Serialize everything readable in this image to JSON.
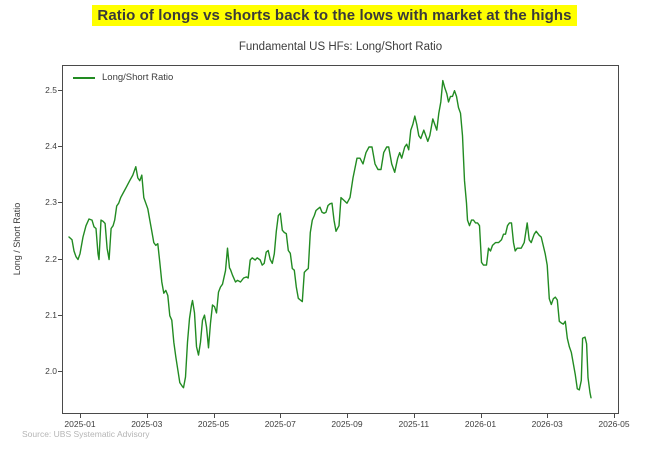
{
  "header": {
    "title": "Ratio of longs vs shorts back to the lows with market at the highs",
    "highlight_color": "#ffff00",
    "text_color": "#3a3a3a"
  },
  "source": "Source: UBS Systematic Advisory",
  "chart_data": {
    "type": "line",
    "title": "Fundamental US HFs: Long/Short Ratio",
    "xlabel": "",
    "ylabel": "Long / Short Ratio",
    "legend": [
      "Long/Short Ratio"
    ],
    "legend_position": "upper left",
    "grid": false,
    "line_color": "#228b22",
    "axis_color": "#4a4a4a",
    "x_unit": "months since 2025-01-01 (0 = 2025-01-01)",
    "xlim": [
      -0.54,
      16.09
    ],
    "ylim": [
      1.927,
      2.544
    ],
    "xticks": {
      "values": [
        0,
        2,
        4,
        6,
        8,
        10,
        12,
        14,
        16
      ],
      "labels": [
        "2025-01",
        "2025-03",
        "2025-05",
        "2025-07",
        "2025-09",
        "2025-11",
        "2026-01",
        "2026-03",
        "2026-05"
      ]
    },
    "yticks": {
      "values": [
        2.0,
        2.1,
        2.2,
        2.3,
        2.4,
        2.5
      ],
      "labels": [
        "2.0",
        "2.1",
        "2.2",
        "2.3",
        "2.4",
        "2.5"
      ]
    },
    "series": [
      {
        "name": "Long/Short Ratio",
        "points": [
          [
            -0.36,
            2.24
          ],
          [
            -0.27,
            2.235
          ],
          [
            -0.21,
            2.215
          ],
          [
            -0.15,
            2.205
          ],
          [
            -0.09,
            2.2
          ],
          [
            -0.03,
            2.21
          ],
          [
            0.06,
            2.24
          ],
          [
            0.15,
            2.26
          ],
          [
            0.24,
            2.272
          ],
          [
            0.33,
            2.27
          ],
          [
            0.39,
            2.258
          ],
          [
            0.45,
            2.255
          ],
          [
            0.51,
            2.21
          ],
          [
            0.54,
            2.2
          ],
          [
            0.6,
            2.27
          ],
          [
            0.66,
            2.268
          ],
          [
            0.72,
            2.264
          ],
          [
            0.78,
            2.22
          ],
          [
            0.84,
            2.2
          ],
          [
            0.9,
            2.255
          ],
          [
            0.96,
            2.26
          ],
          [
            1.01,
            2.27
          ],
          [
            1.07,
            2.295
          ],
          [
            1.13,
            2.3
          ],
          [
            1.19,
            2.31
          ],
          [
            1.28,
            2.32
          ],
          [
            1.37,
            2.33
          ],
          [
            1.46,
            2.34
          ],
          [
            1.55,
            2.35
          ],
          [
            1.64,
            2.365
          ],
          [
            1.7,
            2.345
          ],
          [
            1.76,
            2.34
          ],
          [
            1.82,
            2.35
          ],
          [
            1.88,
            2.31
          ],
          [
            1.94,
            2.3
          ],
          [
            2.0,
            2.29
          ],
          [
            2.06,
            2.27
          ],
          [
            2.12,
            2.25
          ],
          [
            2.18,
            2.23
          ],
          [
            2.24,
            2.225
          ],
          [
            2.3,
            2.228
          ],
          [
            2.36,
            2.195
          ],
          [
            2.42,
            2.16
          ],
          [
            2.48,
            2.14
          ],
          [
            2.54,
            2.145
          ],
          [
            2.6,
            2.136
          ],
          [
            2.66,
            2.1
          ],
          [
            2.72,
            2.092
          ],
          [
            2.78,
            2.053
          ],
          [
            2.84,
            2.027
          ],
          [
            2.9,
            2.004
          ],
          [
            2.96,
            1.981
          ],
          [
            3.04,
            1.974
          ],
          [
            3.07,
            1.972
          ],
          [
            3.13,
            1.991
          ],
          [
            3.19,
            2.053
          ],
          [
            3.25,
            2.095
          ],
          [
            3.31,
            2.119
          ],
          [
            3.34,
            2.127
          ],
          [
            3.4,
            2.105
          ],
          [
            3.46,
            2.045
          ],
          [
            3.52,
            2.03
          ],
          [
            3.58,
            2.053
          ],
          [
            3.64,
            2.092
          ],
          [
            3.7,
            2.101
          ],
          [
            3.76,
            2.08
          ],
          [
            3.82,
            2.043
          ],
          [
            3.88,
            2.087
          ],
          [
            3.94,
            2.119
          ],
          [
            4.0,
            2.116
          ],
          [
            4.06,
            2.105
          ],
          [
            4.12,
            2.142
          ],
          [
            4.18,
            2.151
          ],
          [
            4.24,
            2.156
          ],
          [
            4.33,
            2.18
          ],
          [
            4.39,
            2.22
          ],
          [
            4.45,
            2.185
          ],
          [
            4.48,
            2.182
          ],
          [
            4.54,
            2.172
          ],
          [
            4.63,
            2.16
          ],
          [
            4.69,
            2.163
          ],
          [
            4.78,
            2.16
          ],
          [
            4.87,
            2.167
          ],
          [
            4.96,
            2.169
          ],
          [
            5.01,
            2.167
          ],
          [
            5.07,
            2.199
          ],
          [
            5.13,
            2.203
          ],
          [
            5.22,
            2.199
          ],
          [
            5.28,
            2.203
          ],
          [
            5.37,
            2.199
          ],
          [
            5.43,
            2.19
          ],
          [
            5.49,
            2.193
          ],
          [
            5.55,
            2.213
          ],
          [
            5.61,
            2.216
          ],
          [
            5.67,
            2.2
          ],
          [
            5.73,
            2.193
          ],
          [
            5.79,
            2.21
          ],
          [
            5.85,
            2.25
          ],
          [
            5.91,
            2.278
          ],
          [
            5.97,
            2.282
          ],
          [
            6.03,
            2.252
          ],
          [
            6.09,
            2.248
          ],
          [
            6.15,
            2.246
          ],
          [
            6.21,
            2.216
          ],
          [
            6.27,
            2.211
          ],
          [
            6.33,
            2.184
          ],
          [
            6.39,
            2.181
          ],
          [
            6.45,
            2.151
          ],
          [
            6.51,
            2.131
          ],
          [
            6.57,
            2.128
          ],
          [
            6.63,
            2.125
          ],
          [
            6.69,
            2.177
          ],
          [
            6.75,
            2.181
          ],
          [
            6.81,
            2.184
          ],
          [
            6.87,
            2.248
          ],
          [
            6.93,
            2.27
          ],
          [
            6.99,
            2.278
          ],
          [
            7.04,
            2.287
          ],
          [
            7.1,
            2.29
          ],
          [
            7.16,
            2.293
          ],
          [
            7.22,
            2.284
          ],
          [
            7.28,
            2.282
          ],
          [
            7.34,
            2.284
          ],
          [
            7.4,
            2.296
          ],
          [
            7.46,
            2.299
          ],
          [
            7.52,
            2.3
          ],
          [
            7.58,
            2.27
          ],
          [
            7.64,
            2.25
          ],
          [
            7.73,
            2.26
          ],
          [
            7.79,
            2.31
          ],
          [
            7.88,
            2.305
          ],
          [
            7.97,
            2.3
          ],
          [
            8.06,
            2.31
          ],
          [
            8.15,
            2.345
          ],
          [
            8.27,
            2.38
          ],
          [
            8.36,
            2.38
          ],
          [
            8.45,
            2.37
          ],
          [
            8.54,
            2.39
          ],
          [
            8.63,
            2.4
          ],
          [
            8.72,
            2.4
          ],
          [
            8.81,
            2.37
          ],
          [
            8.9,
            2.36
          ],
          [
            8.99,
            2.36
          ],
          [
            9.07,
            2.39
          ],
          [
            9.16,
            2.4
          ],
          [
            9.22,
            2.4
          ],
          [
            9.31,
            2.37
          ],
          [
            9.4,
            2.355
          ],
          [
            9.49,
            2.38
          ],
          [
            9.55,
            2.39
          ],
          [
            9.61,
            2.38
          ],
          [
            9.7,
            2.4
          ],
          [
            9.76,
            2.405
          ],
          [
            9.82,
            2.395
          ],
          [
            9.88,
            2.43
          ],
          [
            9.94,
            2.44
          ],
          [
            10.0,
            2.455
          ],
          [
            10.06,
            2.44
          ],
          [
            10.12,
            2.42
          ],
          [
            10.18,
            2.415
          ],
          [
            10.27,
            2.43
          ],
          [
            10.33,
            2.42
          ],
          [
            10.39,
            2.41
          ],
          [
            10.45,
            2.42
          ],
          [
            10.54,
            2.45
          ],
          [
            10.6,
            2.44
          ],
          [
            10.66,
            2.43
          ],
          [
            10.72,
            2.46
          ],
          [
            10.78,
            2.48
          ],
          [
            10.84,
            2.518
          ],
          [
            10.9,
            2.505
          ],
          [
            10.96,
            2.495
          ],
          [
            11.01,
            2.48
          ],
          [
            11.07,
            2.49
          ],
          [
            11.13,
            2.49
          ],
          [
            11.19,
            2.5
          ],
          [
            11.25,
            2.49
          ],
          [
            11.31,
            2.47
          ],
          [
            11.37,
            2.46
          ],
          [
            11.43,
            2.42
          ],
          [
            11.49,
            2.34
          ],
          [
            11.55,
            2.3
          ],
          [
            11.58,
            2.27
          ],
          [
            11.64,
            2.26
          ],
          [
            11.7,
            2.27
          ],
          [
            11.76,
            2.27
          ],
          [
            11.82,
            2.265
          ],
          [
            11.88,
            2.265
          ],
          [
            11.94,
            2.26
          ],
          [
            12.0,
            2.195
          ],
          [
            12.06,
            2.19
          ],
          [
            12.15,
            2.19
          ],
          [
            12.21,
            2.22
          ],
          [
            12.27,
            2.215
          ],
          [
            12.33,
            2.225
          ],
          [
            12.42,
            2.23
          ],
          [
            12.51,
            2.23
          ],
          [
            12.6,
            2.235
          ],
          [
            12.66,
            2.245
          ],
          [
            12.72,
            2.245
          ],
          [
            12.78,
            2.26
          ],
          [
            12.84,
            2.265
          ],
          [
            12.9,
            2.265
          ],
          [
            12.96,
            2.23
          ],
          [
            13.01,
            2.215
          ],
          [
            13.07,
            2.22
          ],
          [
            13.19,
            2.22
          ],
          [
            13.28,
            2.23
          ],
          [
            13.37,
            2.265
          ],
          [
            13.43,
            2.235
          ],
          [
            13.49,
            2.23
          ],
          [
            13.58,
            2.245
          ],
          [
            13.64,
            2.25
          ],
          [
            13.73,
            2.243
          ],
          [
            13.79,
            2.24
          ],
          [
            13.85,
            2.225
          ],
          [
            13.91,
            2.21
          ],
          [
            13.97,
            2.19
          ],
          [
            14.03,
            2.13
          ],
          [
            14.09,
            2.12
          ],
          [
            14.15,
            2.13
          ],
          [
            14.21,
            2.133
          ],
          [
            14.27,
            2.128
          ],
          [
            14.33,
            2.09
          ],
          [
            14.39,
            2.087
          ],
          [
            14.45,
            2.085
          ],
          [
            14.51,
            2.09
          ],
          [
            14.57,
            2.06
          ],
          [
            14.63,
            2.045
          ],
          [
            14.69,
            2.035
          ],
          [
            14.75,
            2.015
          ],
          [
            14.81,
            1.995
          ],
          [
            14.87,
            1.97
          ],
          [
            14.93,
            1.968
          ],
          [
            14.99,
            1.985
          ],
          [
            15.03,
            2.06
          ],
          [
            15.1,
            2.062
          ],
          [
            15.15,
            2.05
          ],
          [
            15.19,
            1.99
          ],
          [
            15.25,
            1.963
          ],
          [
            15.28,
            1.954
          ]
        ]
      }
    ]
  }
}
